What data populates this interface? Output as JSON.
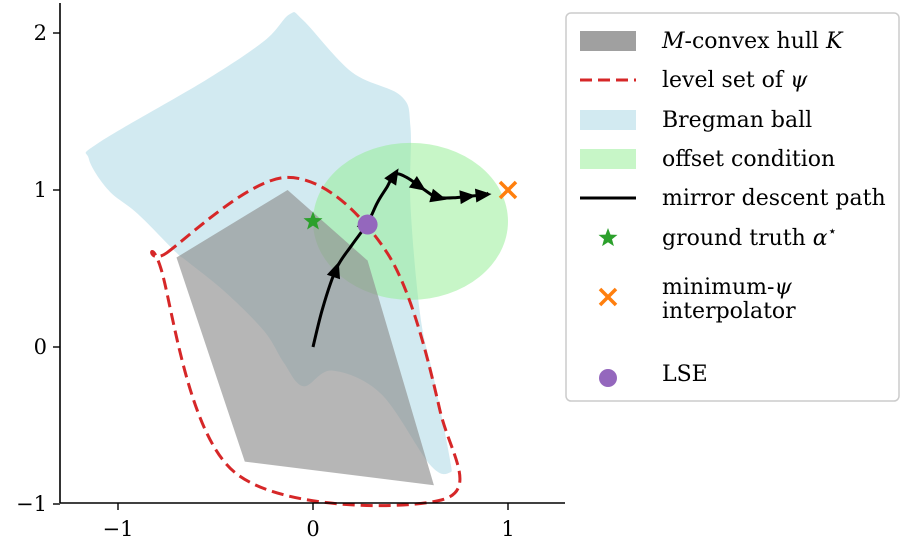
{
  "chart_data": {
    "type": "scatter",
    "title": "",
    "xlabel": "",
    "ylabel": "",
    "xlim": [
      -1.3,
      1.3
    ],
    "ylim": [
      -1.0,
      2.2
    ],
    "xticks": [
      {
        "value": -1,
        "label": "−1"
      },
      {
        "value": 0,
        "label": "0"
      },
      {
        "value": 1,
        "label": "1"
      }
    ],
    "yticks": [
      {
        "value": -1,
        "label": "−1"
      },
      {
        "value": 0,
        "label": "0"
      },
      {
        "value": 1,
        "label": "1"
      },
      {
        "value": 2,
        "label": "2"
      }
    ],
    "grid": false,
    "legend_position": "right",
    "colors": {
      "hull": "#8f8f8f",
      "level_set": "#d62728",
      "bregman": "#add8e6",
      "offset": "#90ee90",
      "path": "#000000",
      "ground_truth": "#2ca02c",
      "interpolator": "#ff7f0e",
      "lse": "#9467bd"
    },
    "regions": {
      "bregman_ball": [
        [
          -1.15,
          1.2
        ],
        [
          -1.1,
          1.3
        ],
        [
          -0.55,
          1.7
        ],
        [
          -0.25,
          1.95
        ],
        [
          -0.12,
          2.12
        ],
        [
          -0.05,
          2.08
        ],
        [
          0.2,
          1.75
        ],
        [
          0.45,
          1.6
        ],
        [
          0.5,
          1.4
        ],
        [
          0.5,
          0.9
        ],
        [
          0.55,
          0.2
        ],
        [
          0.62,
          -0.2
        ],
        [
          0.7,
          -0.7
        ],
        [
          0.7,
          -0.8
        ],
        [
          0.6,
          -0.75
        ],
        [
          0.35,
          -0.3
        ],
        [
          0.1,
          -0.15
        ],
        [
          -0.05,
          -0.25
        ],
        [
          -0.15,
          -0.1
        ],
        [
          -0.25,
          0.1
        ],
        [
          -0.45,
          0.35
        ],
        [
          -0.65,
          0.55
        ],
        [
          -0.7,
          0.6
        ],
        [
          -0.9,
          0.85
        ],
        [
          -1.05,
          1.0
        ]
      ],
      "hull": [
        [
          -0.7,
          0.57
        ],
        [
          -0.13,
          1.0
        ],
        [
          0.28,
          0.55
        ],
        [
          0.62,
          -0.88
        ],
        [
          -0.35,
          -0.73
        ]
      ],
      "level_set": [
        [
          -0.75,
          0.6
        ],
        [
          -0.13,
          1.08
        ],
        [
          0.38,
          0.6
        ],
        [
          0.65,
          -0.4
        ],
        [
          0.67,
          -0.97
        ],
        [
          -0.4,
          -0.8
        ],
        [
          -0.78,
          0.5
        ]
      ],
      "offset_condition": {
        "center": [
          0.5,
          0.8
        ],
        "rx": 0.5,
        "ry": 0.5
      }
    },
    "series": [
      {
        "kind": "line",
        "points": [
          [
            0.0,
            0.0
          ],
          [
            0.05,
            0.25
          ],
          [
            0.12,
            0.5
          ],
          [
            0.2,
            0.65
          ],
          [
            0.28,
            0.79
          ],
          [
            0.33,
            0.92
          ],
          [
            0.38,
            1.02
          ],
          [
            0.42,
            1.1
          ],
          [
            0.48,
            1.08
          ],
          [
            0.55,
            1.02
          ],
          [
            0.62,
            0.96
          ],
          [
            0.65,
            0.95
          ],
          [
            0.72,
            0.95
          ],
          [
            0.8,
            0.96
          ],
          [
            0.88,
            0.97
          ],
          [
            0.9,
            0.98
          ]
        ],
        "arrows_at": [
          2,
          4,
          7,
          9,
          11,
          13,
          14
        ]
      },
      {
        "kind": "marker",
        "name": "ground truth",
        "marker": "star",
        "x": 0.0,
        "y": 0.8
      },
      {
        "kind": "marker",
        "name": "minimum-interpolator",
        "marker": "x",
        "x": 1.0,
        "y": 1.0
      },
      {
        "kind": "marker",
        "name": "LSE",
        "marker": "circle",
        "x": 0.28,
        "y": 0.78
      }
    ],
    "legend": [
      {
        "type": "patch",
        "color": "#8f8f8f",
        "parts": [
          {
            "t": "M",
            "m": true
          },
          {
            "t": "-convex hull "
          },
          {
            "t": "K",
            "m": true
          }
        ]
      },
      {
        "type": "dash",
        "color": "#d62728",
        "parts": [
          {
            "t": "level set of "
          },
          {
            "t": "ψ",
            "m": true
          }
        ]
      },
      {
        "type": "patch",
        "color": "#add8e6",
        "parts": [
          {
            "t": "Bregman ball"
          }
        ]
      },
      {
        "type": "patch",
        "color": "#90ee90",
        "parts": [
          {
            "t": "offset condition"
          }
        ]
      },
      {
        "type": "line",
        "color": "#000000",
        "parts": [
          {
            "t": "mirror descent path"
          }
        ]
      },
      {
        "type": "star",
        "color": "#2ca02c",
        "parts": [
          {
            "t": "ground truth "
          },
          {
            "t": "α",
            "m": true
          },
          {
            "t": "⋆",
            "sup": true
          }
        ]
      },
      {
        "type": "x",
        "color": "#ff7f0e",
        "parts": [
          {
            "t": "minimum-"
          },
          {
            "t": "ψ",
            "m": true
          }
        ],
        "parts2": [
          {
            "t": "interpolator"
          }
        ]
      },
      {
        "type": "circle",
        "color": "#9467bd",
        "parts": [
          {
            "t": "LSE"
          }
        ]
      }
    ]
  }
}
